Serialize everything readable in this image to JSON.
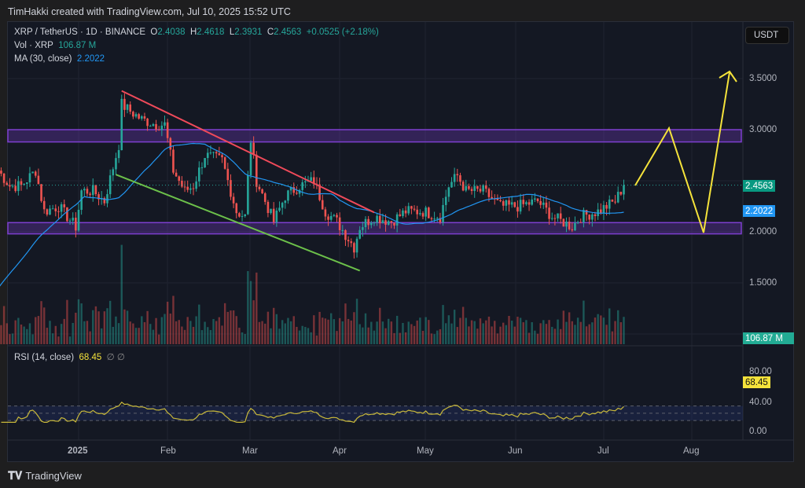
{
  "header": {
    "credit": "TimHakki created with TradingView.com, Jul 10, 2025 15:52 UTC"
  },
  "legend": {
    "symbol": "XRP / TetherUS · 1D · BINANCE",
    "o_label": "O",
    "o": "2.4038",
    "h_label": "H",
    "h": "2.4618",
    "l_label": "L",
    "l": "2.3931",
    "c_label": "C",
    "c": "2.4563",
    "change": "+0.0525 (+2.18%)",
    "vol_label": "Vol · XRP",
    "vol": "106.87 M",
    "ma_label": "MA (30, close)",
    "ma": "2.2022",
    "rsi_label": "RSI (14, close)",
    "rsi": "68.45",
    "rsi_extra": "∅ ∅"
  },
  "currency": "USDT",
  "price_axis": [
    "3.5000",
    "3.0000",
    "2.0000",
    "1.5000"
  ],
  "rsi_axis": [
    "80.00",
    "40.00",
    "0.00"
  ],
  "tags": {
    "last": "2.4563",
    "ma": "2.2022",
    "vol": "106.87 M",
    "rsi": "68.45"
  },
  "time_axis": [
    "2025",
    "Feb",
    "Mar",
    "Apr",
    "May",
    "Jun",
    "Jul",
    "Aug"
  ],
  "colors": {
    "up": "#26a69a",
    "down": "#ef5350",
    "ma": "#2196f3",
    "rsi": "#c9b93a",
    "zone": "#7e3fd0",
    "resistance_line": "#f04a5a",
    "support_line": "#6cc04a",
    "projection": "#f5e33b"
  },
  "footer": {
    "brand": "TradingView"
  },
  "chart_data": {
    "type": "candlestick",
    "approx_closes": [
      [
        "2024-12-04",
        2.6
      ],
      [
        "2024-12-08",
        2.45
      ],
      [
        "2024-12-12",
        2.45
      ],
      [
        "2024-12-17",
        2.6
      ],
      [
        "2024-12-20",
        2.2
      ],
      [
        "2024-12-25",
        2.25
      ],
      [
        "2024-12-31",
        2.05
      ],
      [
        "2025-01-02",
        2.4
      ],
      [
        "2025-01-06",
        2.4
      ],
      [
        "2025-01-10",
        2.3
      ],
      [
        "2025-01-15",
        2.85
      ],
      [
        "2025-01-16",
        3.25
      ],
      [
        "2025-01-18",
        3.2
      ],
      [
        "2025-01-23",
        3.1
      ],
      [
        "2025-01-28",
        3.05
      ],
      [
        "2025-01-31",
        3.05
      ],
      [
        "2025-02-03",
        2.6
      ],
      [
        "2025-02-07",
        2.4
      ],
      [
        "2025-02-10",
        2.45
      ],
      [
        "2025-02-14",
        2.75
      ],
      [
        "2025-02-20",
        2.7
      ],
      [
        "2025-02-25",
        2.2
      ],
      [
        "2025-02-28",
        2.15
      ],
      [
        "2025-03-02",
        2.9
      ],
      [
        "2025-03-04",
        2.5
      ],
      [
        "2025-03-10",
        2.1
      ],
      [
        "2025-03-14",
        2.35
      ],
      [
        "2025-03-19",
        2.45
      ],
      [
        "2025-03-24",
        2.5
      ],
      [
        "2025-03-28",
        2.2
      ],
      [
        "2025-04-01",
        2.1
      ],
      [
        "2025-04-07",
        1.85
      ],
      [
        "2025-04-09",
        2.05
      ],
      [
        "2025-04-14",
        2.15
      ],
      [
        "2025-04-20",
        2.1
      ],
      [
        "2025-04-25",
        2.2
      ],
      [
        "2025-05-01",
        2.2
      ],
      [
        "2025-05-07",
        2.15
      ],
      [
        "2025-05-10",
        2.45
      ],
      [
        "2025-05-13",
        2.55
      ],
      [
        "2025-05-16",
        2.4
      ],
      [
        "2025-05-22",
        2.4
      ],
      [
        "2025-05-28",
        2.25
      ],
      [
        "2025-06-03",
        2.25
      ],
      [
        "2025-06-10",
        2.3
      ],
      [
        "2025-06-15",
        2.15
      ],
      [
        "2025-06-22",
        2.05
      ],
      [
        "2025-06-25",
        2.15
      ],
      [
        "2025-07-01",
        2.2
      ],
      [
        "2025-07-07",
        2.3
      ],
      [
        "2025-07-10",
        2.4563
      ]
    ],
    "zones": [
      [
        2.88,
        3.0
      ],
      [
        1.98,
        2.09
      ]
    ],
    "ma_period": 30,
    "rsi_period": 14
  }
}
